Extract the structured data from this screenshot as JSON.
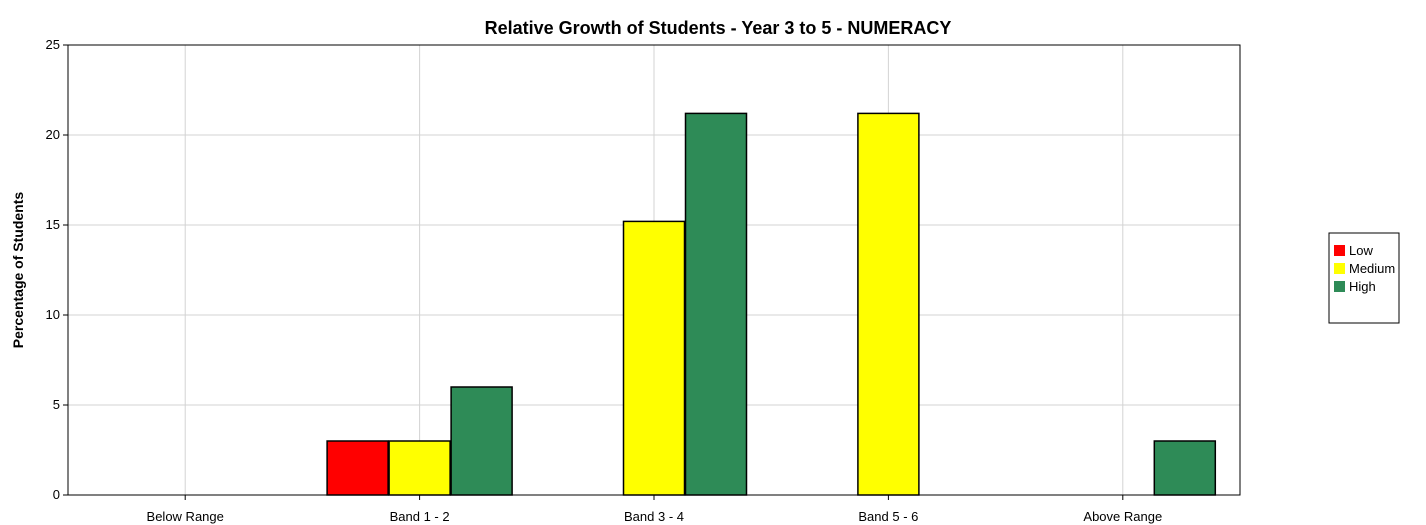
{
  "chart_data": {
    "type": "bar",
    "title": "Relative Growth of Students - Year 3 to 5 - NUMERACY",
    "xlabel": "",
    "ylabel": "Percentage of Students",
    "categories": [
      "Below Range",
      "Band 1 - 2",
      "Band 3 - 4",
      "Band 5 - 6",
      "Above Range"
    ],
    "series": [
      {
        "name": "Low",
        "color": "#ff0000",
        "values": [
          0,
          3.0,
          0,
          0,
          0
        ]
      },
      {
        "name": "Medium",
        "color": "#ffff00",
        "values": [
          0,
          3.0,
          15.2,
          21.2,
          0
        ]
      },
      {
        "name": "High",
        "color": "#2e8b57",
        "values": [
          0,
          6.0,
          21.2,
          0,
          3.0
        ]
      }
    ],
    "ylim": [
      0,
      25
    ],
    "yticks": [
      0,
      5,
      10,
      15,
      20,
      25
    ],
    "grid": true,
    "legend_position": "right"
  }
}
